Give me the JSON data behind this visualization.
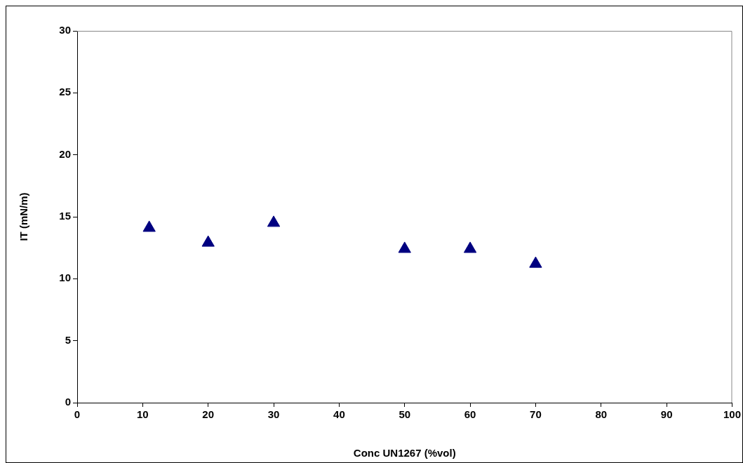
{
  "chart_data": {
    "type": "scatter",
    "xlabel": "Conc UN1267 (%vol)",
    "ylabel": "IT (mN/m)",
    "x": [
      11,
      20,
      30,
      50,
      60,
      70
    ],
    "series": [
      {
        "color": "#000080",
        "values": [
          14.1,
          12.9,
          14.5,
          12.4,
          12.4,
          11.2
        ]
      }
    ],
    "xlim": [
      0,
      100
    ],
    "xticks": [
      0,
      10,
      20,
      30,
      40,
      50,
      60,
      70,
      80,
      90,
      100
    ],
    "ylim": [
      0,
      30
    ],
    "yticks": [
      0,
      5,
      10,
      15,
      20,
      25,
      30
    ],
    "grid": false,
    "legend": false,
    "marker": "triangle"
  }
}
